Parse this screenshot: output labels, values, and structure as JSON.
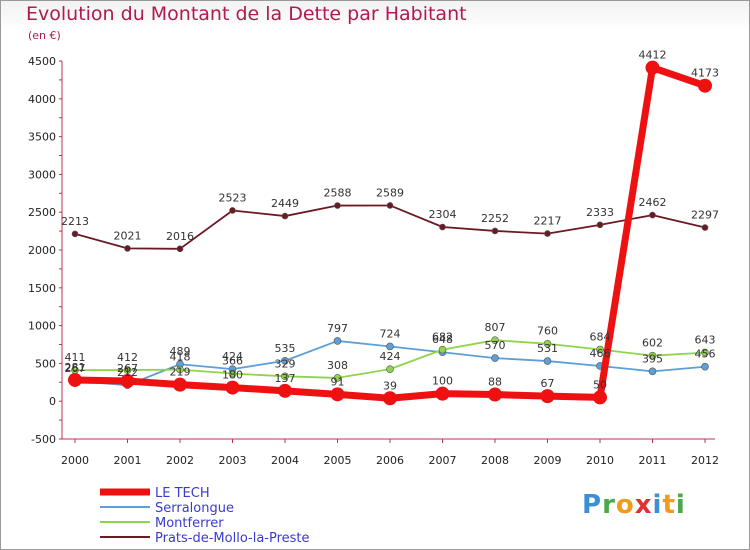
{
  "header": {
    "title": "Evolution du Montant de la Dette par Habitant",
    "unit": "(en €)"
  },
  "logo": {
    "letters": [
      "P",
      "r",
      "o",
      "x",
      "i",
      "t",
      "i"
    ],
    "colors": [
      "#3a8fd6",
      "#4aa84a",
      "#f29a1a",
      "#e03030",
      "#3a8fd6",
      "#f29a1a",
      "#4aa84a"
    ]
  },
  "chart_data": {
    "type": "line",
    "title": "Evolution du Montant de la Dette par Habitant",
    "ylabel": "(en €)",
    "x": [
      "2000",
      "2001",
      "2002",
      "2003",
      "2004",
      "2005",
      "2006",
      "2007",
      "2008",
      "2009",
      "2010",
      "2011",
      "2012"
    ],
    "ylim": [
      -500,
      4500
    ],
    "yticks": [
      -500,
      0,
      500,
      1000,
      1500,
      2000,
      2500,
      3000,
      3500,
      4000,
      4500
    ],
    "grid": false,
    "legend_position": "bottom-left",
    "series": [
      {
        "name": "Prats-de-Mollo-la-Preste",
        "color": "#6b1a24",
        "values": [
          2213,
          2021,
          2016,
          2523,
          2449,
          2588,
          2589,
          2304,
          2252,
          2217,
          2333,
          2462,
          2297
        ]
      },
      {
        "name": "Serralongue",
        "color": "#5d9fd6",
        "values": [
          267,
          212,
          489,
          424,
          535,
          797,
          724,
          648,
          570,
          531,
          466,
          395,
          456
        ]
      },
      {
        "name": "Montferrer",
        "color": "#8fd44a",
        "values": [
          411,
          412,
          418,
          366,
          329,
          308,
          424,
          682,
          807,
          760,
          684,
          602,
          643
        ]
      },
      {
        "name": "LE TECH",
        "color": "#ee1111",
        "values": [
          281,
          267,
          219,
          180,
          137,
          91,
          39,
          100,
          88,
          67,
          50,
          4412,
          4173
        ]
      }
    ]
  }
}
